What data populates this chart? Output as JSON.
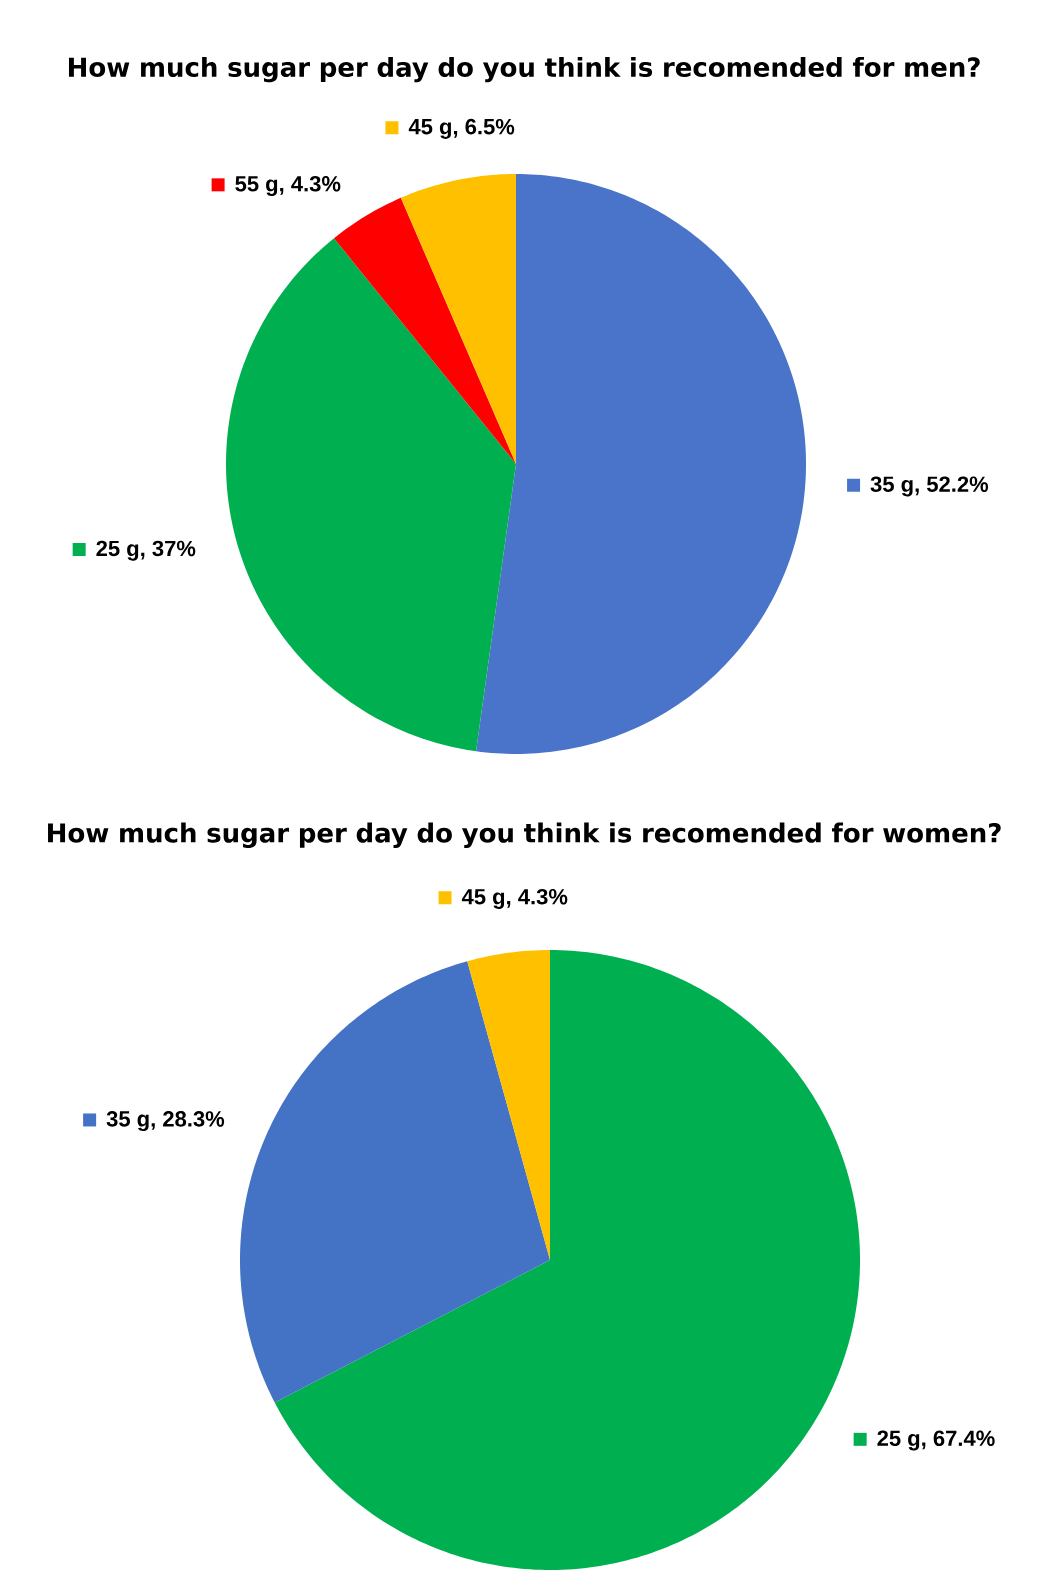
{
  "chart_data": [
    {
      "type": "pie",
      "title": "How much sugar per day do you think is recomended for men?",
      "categories": [
        "35 g",
        "25 g",
        "55 g",
        "45 g"
      ],
      "values": [
        52.2,
        37,
        4.3,
        6.5
      ],
      "value_labels": [
        ", 52.2%",
        ", 37%",
        ", 4.3%",
        ", 6.5%"
      ],
      "colors": [
        "#4a74c9",
        "#00b050",
        "#ff0000",
        "#ffc000"
      ],
      "legend": "top left"
    },
    {
      "type": "pie",
      "title": "How much sugar per day do you think is recomended for women?",
      "categories": [
        "25 g",
        "35 g",
        "45 g"
      ],
      "values": [
        67.4,
        28.3,
        4.3
      ],
      "value_labels": [
        ", 67.4%",
        ", 28.3%",
        ", 4.3%"
      ],
      "colors": [
        "#00b050",
        "#4472c4",
        "#ffc000"
      ],
      "legend": "top left"
    }
  ]
}
